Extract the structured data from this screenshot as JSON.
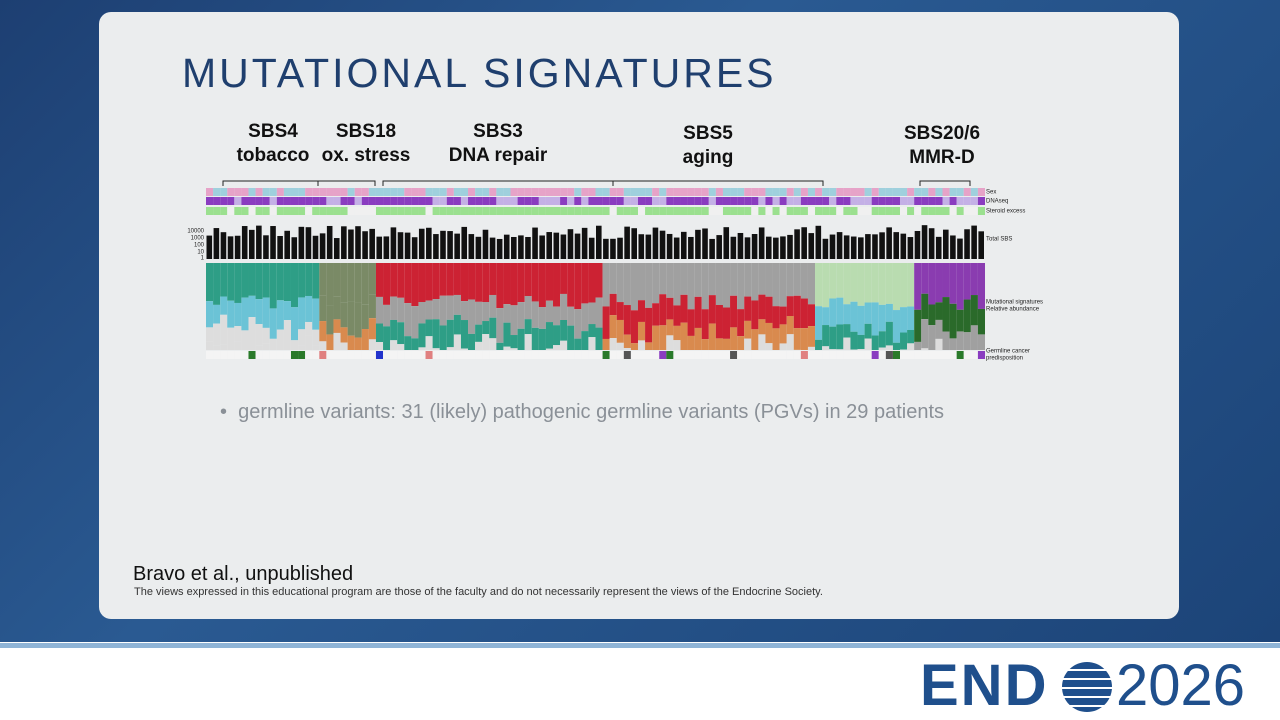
{
  "slide": {
    "title": "MUTATIONAL SIGNATURES",
    "signature_groups": [
      {
        "name": "SBS4",
        "desc": "tobacco"
      },
      {
        "name": "SBS18",
        "desc": "ox. stress"
      },
      {
        "name": "SBS3",
        "desc": "DNA repair"
      },
      {
        "name": "SBS5",
        "desc": "aging"
      },
      {
        "name": "SBS20/6",
        "desc": "MMR-D"
      }
    ],
    "figure": {
      "tracks": [
        "Sex",
        "DNAseq",
        "Steroid excess",
        "Total SBS",
        "Mutational signatures",
        "Relative abundance",
        "Germline cancer",
        "predisposition"
      ],
      "axis_ticks": [
        "10000",
        "1000",
        "100",
        "10",
        "1"
      ]
    },
    "bullet": "germline variants: 31 (likely) pathogenic germline variants (PGVs) in 29 patients",
    "citation": "Bravo et al., unpublished",
    "disclaimer": "The views expressed in this educational program are those of the faculty and do not necessarily represent the views of the Endocrine Society.",
    "logo": {
      "brand": "END",
      "year": "2026"
    }
  }
}
